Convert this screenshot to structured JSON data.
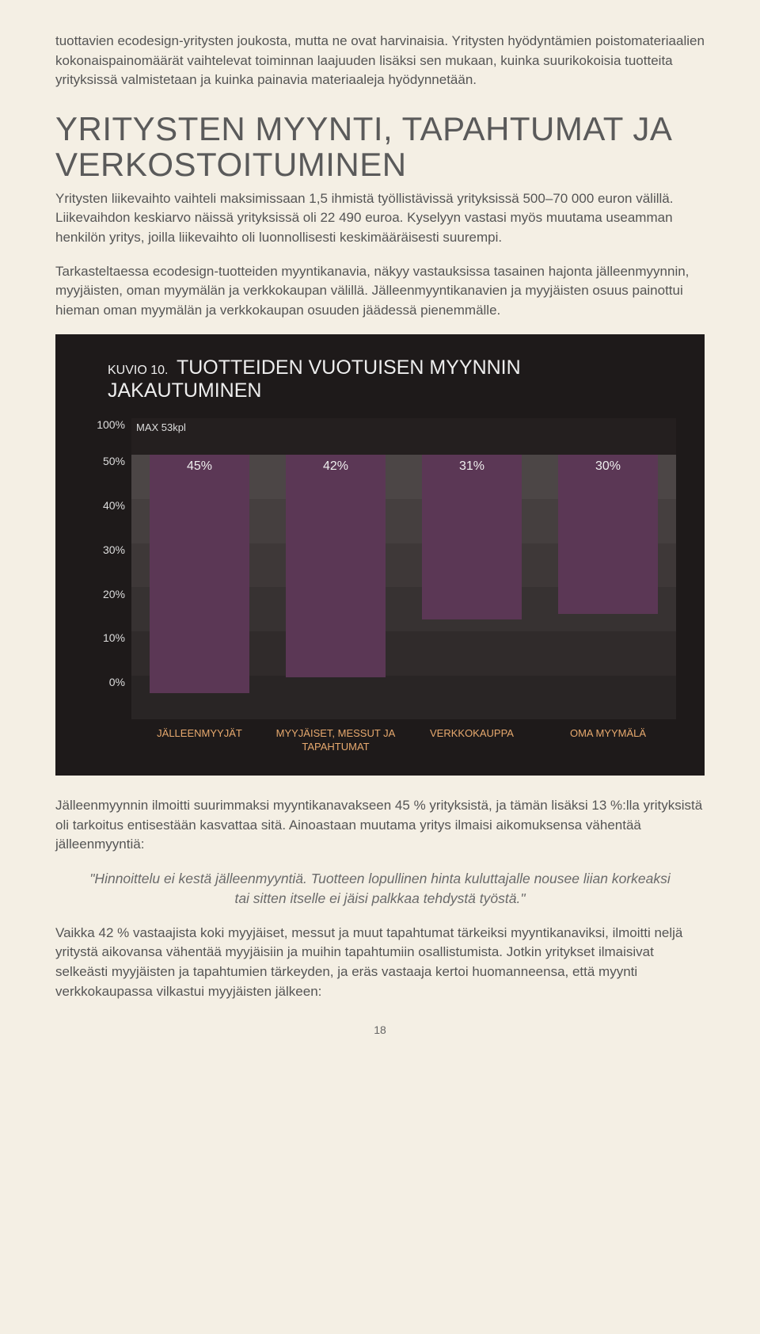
{
  "paragraphs": {
    "intro1": "tuottavien ecodesign-yritysten joukosta, mutta ne ovat harvinaisia. Yritysten hyödyntämi­en poistomateriaalien kokonaispainomäärät vaihtelevat toiminnan laajuuden lisäksi sen mukaan, kuinka suurikokoisia tuotteita yrityksissä valmistetaan ja kuinka painavia materi­aaleja hyödynnetään.",
    "intro2": "Yritysten liikevaihto vaihteli maksimissaan 1,5 ihmistä työllistävissä yrityksissä 500–70 000 euron välillä. Liikevaihdon keskiarvo näissä yrityksissä oli 22 490 euroa. Kyselyyn vastasi myös muutama useamman henkilön yritys, joilla liikevaihto oli luonnollisesti keski­määräisesti suurempi.",
    "intro3": "Tarkasteltaessa ecodesign-tuotteiden myyntikanavia, näkyy vastauksissa tasainen hajon­ta jälleenmyynnin, myyjäisten, oman myymälän ja verkkokaupan välillä. Jälleenmyyntika­navien ja myyjäisten osuus painottui hieman oman myymälän ja verkkokaupan osuuden jäädessä pienemmälle.",
    "after1": "Jälleenmyynnin ilmoitti suurimmaksi myyntikanavakseen 45 % yrityksistä, ja tämän lisäksi 13 %:lla yrityksistä oli tarkoitus entisestään kasvattaa sitä. Ainoastaan muutama yritys ilmaisi aikomuksensa vähentää jälleenmyyntiä:",
    "after2": "Vaikka 42 % vastaajista koki myyjäiset, messut ja muut tapahtumat tärkeiksi myyntika­naviksi, ilmoitti neljä yritystä aikovansa vähentää myyjäisiin ja muihin tapahtumiin osallis­tumista. Jotkin yritykset ilmaisivat selkeästi myyjäisten ja tapahtumien tärkeyden, ja eräs vastaaja kertoi huomanneensa, että myynti verkkokaupassa vilkastui myyjäisten jälkeen:"
  },
  "heading": "YRITYSTEN MYYNTI, TAPAHTUMAT JA VERKOSTOITUMINEN",
  "quote": "\"Hinnoittelu ei kestä jälleenmyyntiä. Tuotteen lopullinen hinta kuluttajalle nousee liian korkeaksi tai sitten itselle ei jäisi palkkaa tehdystä työstä.\"",
  "page_number": "18",
  "chart": {
    "kuvio_label": "KUVIO 10.",
    "title": "TUOTTEIDEN VUOTUISEN MYYNNIN JAKAUTUMINEN",
    "max_label": "MAX 53kpl",
    "type": "bar",
    "background_color": "#1e1a1a",
    "bar_color": "#5b3755",
    "bar_label_color": "#eeeeee",
    "x_label_color": "#e7a96e",
    "y_label_color": "#dddddd",
    "band_colors": [
      "#4c4646",
      "#453f3f",
      "#3e3838",
      "#373232",
      "#302b2b",
      "#292525"
    ],
    "top_band_color": "#241f1f",
    "y_ticks": [
      "100%",
      "50%",
      "40%",
      "30%",
      "20%",
      "10%",
      "0%"
    ],
    "categories": [
      "JÄLLEENMYYJÄT",
      "MYYJÄISET, MESSUT JA TAPAHTUMAT",
      "VERKKOKAUPPA",
      "OMA MYYMÄLÄ"
    ],
    "values_label": [
      "45%",
      "42%",
      "31%",
      "30%"
    ],
    "values": [
      45,
      42,
      31,
      30
    ],
    "bar_width": 0.76,
    "font_family": "Arial"
  }
}
